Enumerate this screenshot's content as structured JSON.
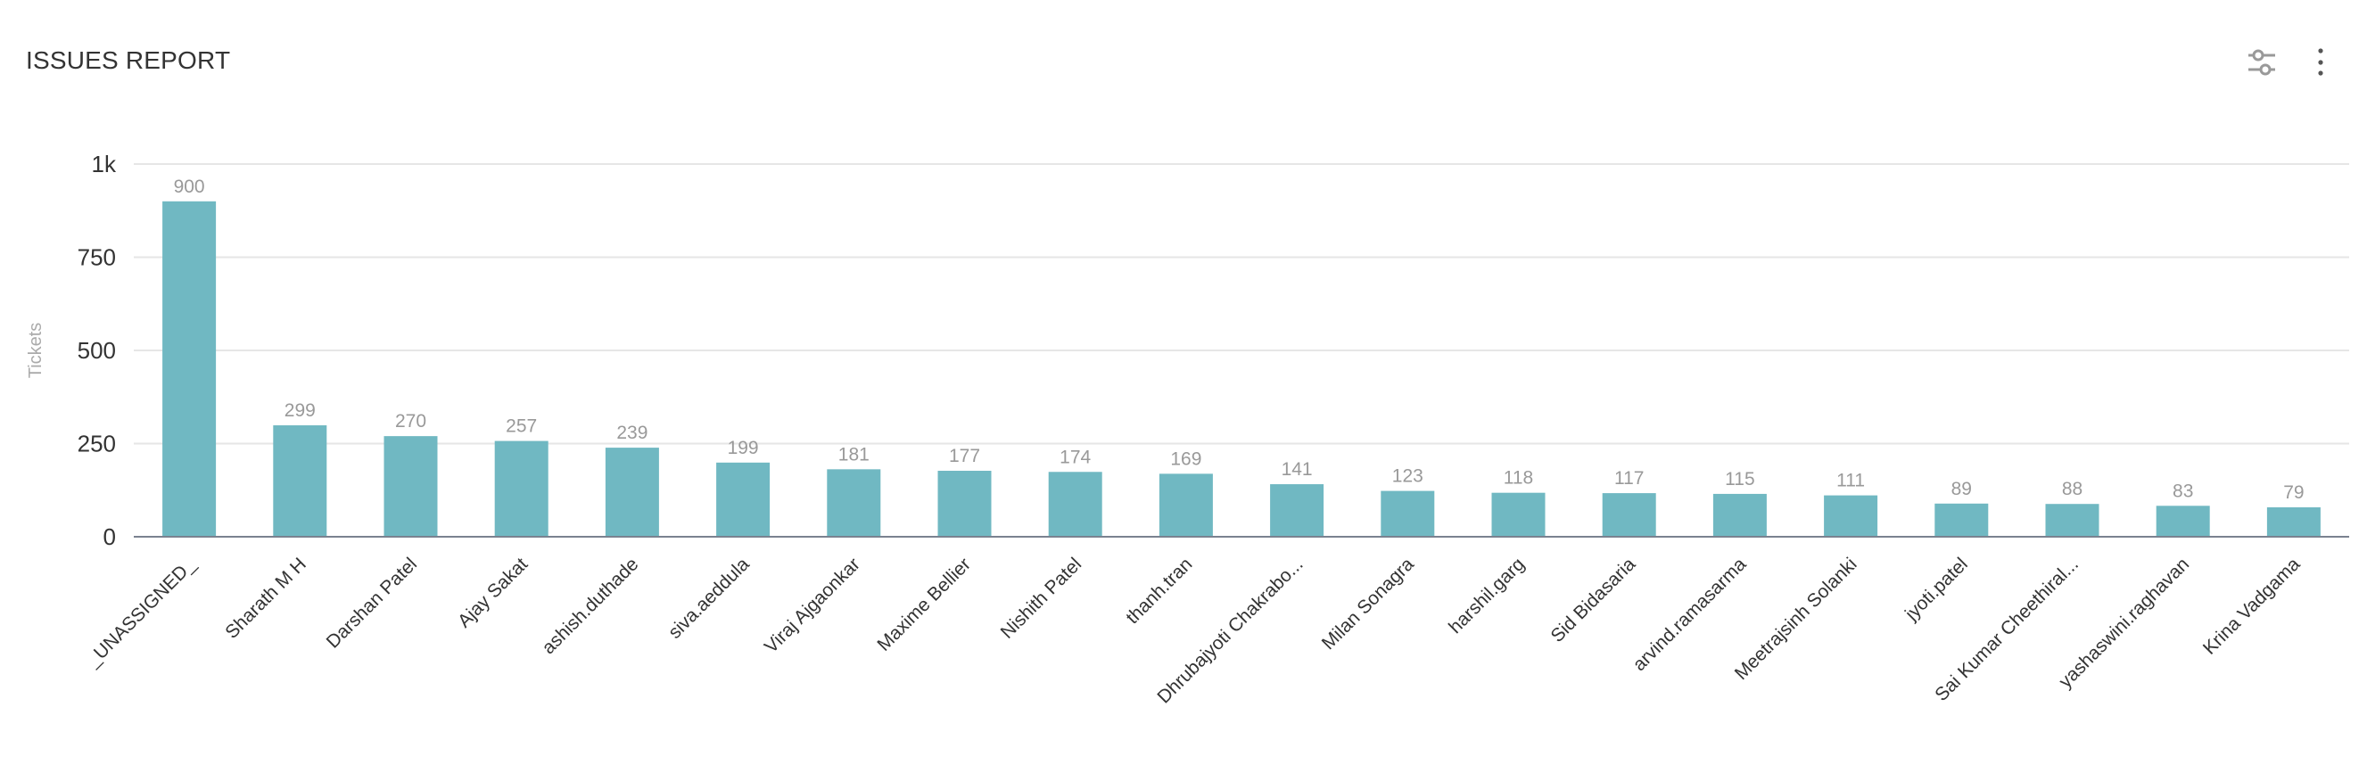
{
  "header": {
    "title": "ISSUES REPORT",
    "icons": [
      "sliders-icon",
      "more-vertical-icon"
    ]
  },
  "colors": {
    "bar": "#70b8c2",
    "grid": "#e6e6e6",
    "axis": "#7a8290",
    "data_label": "#999999",
    "tick_label": "#333333",
    "axis_title": "#aaaaaa"
  },
  "chart_data": {
    "type": "bar",
    "title": "",
    "xlabel": "",
    "ylabel": "Tickets",
    "ylim": [
      0,
      1000
    ],
    "yticks": [
      0,
      250,
      500,
      750,
      1000
    ],
    "ytick_labels": [
      "0",
      "250",
      "500",
      "750",
      "1k"
    ],
    "grid": true,
    "legend": "none",
    "categories": [
      "_UNASSIGNED_",
      "Sharath M H",
      "Darshan Patel",
      "Ajay Sakat",
      "ashish.duthade",
      "siva.aeddula",
      "Viraj Ajgaonkar",
      "Maxime Bellier",
      "Nishith Patel",
      "thanh.tran",
      "Dhrubajyoti Chakrabo...",
      "Milan Sonagra",
      "harshil.garg",
      "Sid Bidasaria",
      "arvind.ramasarma",
      "Meetrajsinh Solanki",
      "jyoti.patel",
      "Sai Kumar Cheethiral...",
      "yashaswini.raghavan",
      "Krina Vadgama"
    ],
    "values": [
      900,
      299,
      270,
      257,
      239,
      199,
      181,
      177,
      174,
      169,
      141,
      123,
      118,
      117,
      115,
      111,
      89,
      88,
      83,
      79
    ]
  }
}
